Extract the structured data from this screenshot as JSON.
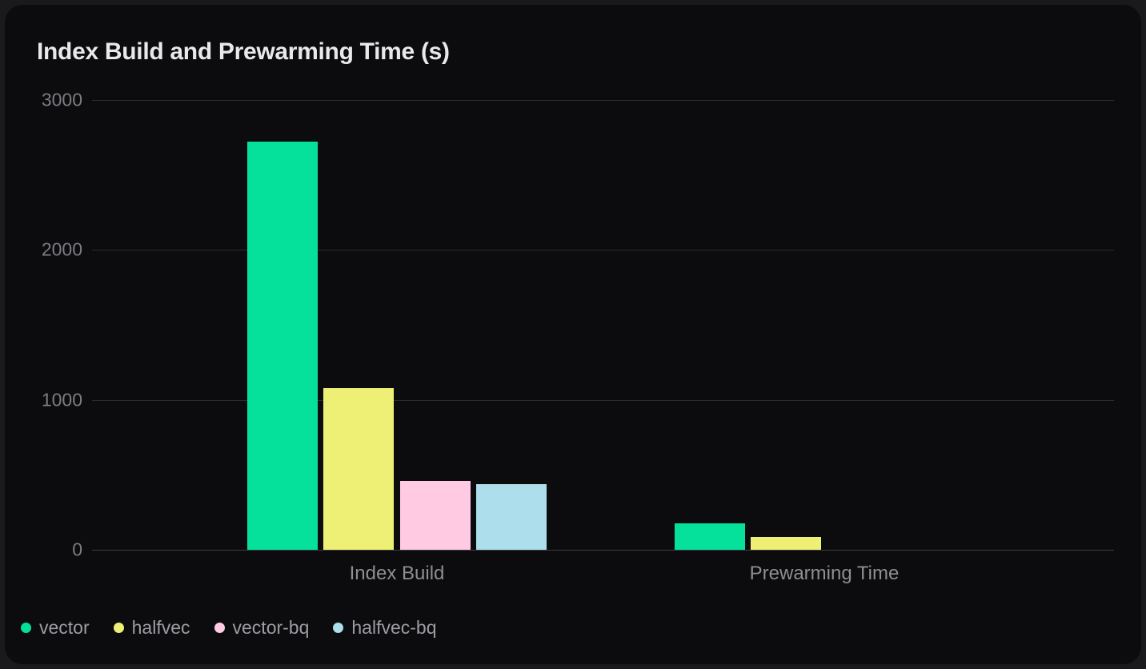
{
  "title": "Index Build and Prewarming Time (s)",
  "colors": {
    "background_outer": "#1A1A1C",
    "card_background": "#0C0C0E",
    "gridline": "#2B2B2F",
    "baseline": "#3E3E44",
    "title_text": "#E9E9EB",
    "y_tick_text": "#7C7C82",
    "category_text": "#8E8E93",
    "legend_text": "#9C9CA2"
  },
  "chart_data": {
    "type": "bar",
    "title": "Index Build and Prewarming Time (s)",
    "categories": [
      "Index Build",
      "Prewarming Time"
    ],
    "series": [
      {
        "name": "vector",
        "color": "#05E19B",
        "values": [
          2725,
          175
        ]
      },
      {
        "name": "halfvec",
        "color": "#EEF076",
        "values": [
          1080,
          85
        ]
      },
      {
        "name": "vector-bq",
        "color": "#FFCAE2",
        "values": [
          460,
          0
        ]
      },
      {
        "name": "halfvec-bq",
        "color": "#ADDEEB",
        "values": [
          440,
          0
        ]
      }
    ],
    "xlabel": "",
    "ylabel": "",
    "ylim": [
      0,
      3000
    ],
    "yticks": [
      0,
      1000,
      2000,
      3000
    ],
    "grid": true,
    "legend_position": "bottom-left"
  }
}
